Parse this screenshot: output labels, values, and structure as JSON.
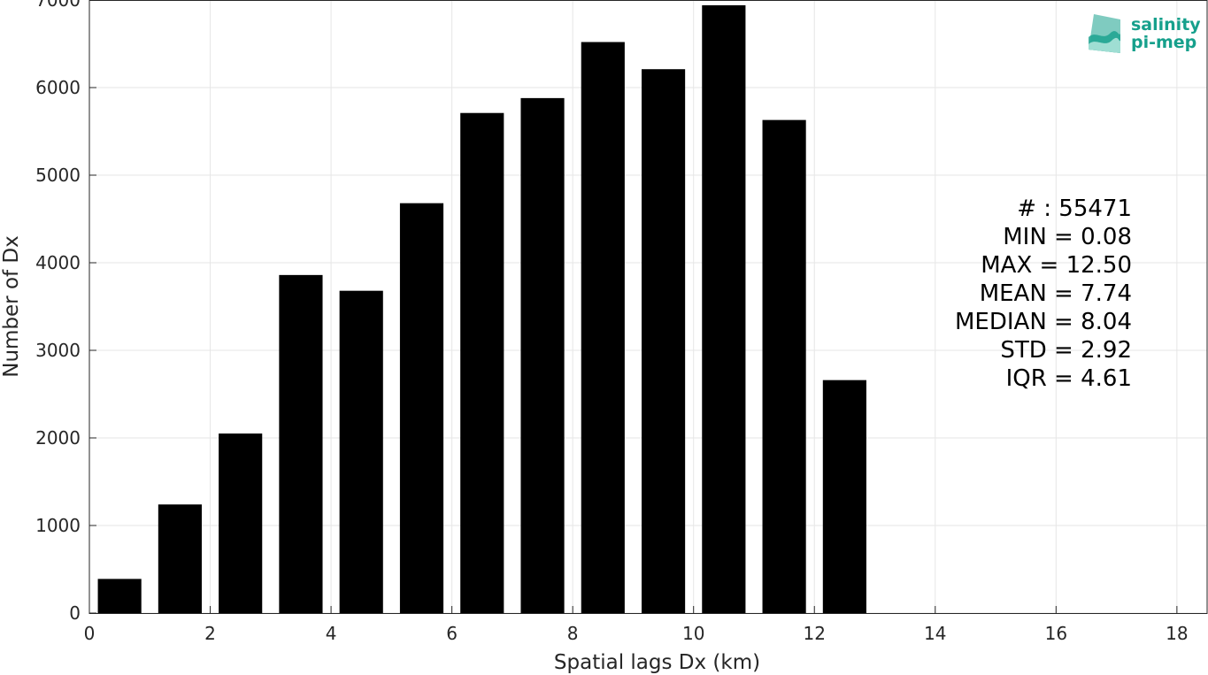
{
  "chart_data": {
    "type": "bar",
    "x": [
      0.5,
      1.5,
      2.5,
      3.5,
      4.5,
      5.5,
      6.5,
      7.5,
      8.5,
      9.5,
      10.5,
      11.5,
      12.5
    ],
    "values": [
      390,
      1240,
      2050,
      3860,
      3680,
      4680,
      5710,
      5880,
      6520,
      6210,
      6940,
      5630,
      2660
    ],
    "xlabel": "Spatial lags Dx (km)",
    "ylabel": "Number of Dx",
    "xlim": [
      0,
      18.5
    ],
    "ylim": [
      0,
      7000
    ],
    "xticks": [
      0,
      2,
      4,
      6,
      8,
      10,
      12,
      14,
      16,
      18
    ],
    "yticks": [
      0,
      1000,
      2000,
      3000,
      4000,
      5000,
      6000,
      7000
    ],
    "grid": true,
    "bar_color": "#000000",
    "annotations": [
      "# : 55471",
      "MIN = 0.08",
      "MAX =  12.50",
      "MEAN = 7.74",
      "MEDIAN = 8.04",
      "STD = 2.92",
      "IQR = 4.61"
    ]
  },
  "logo": {
    "line1": "salinity",
    "line2": "pi-mep",
    "color": "#16a08c"
  }
}
